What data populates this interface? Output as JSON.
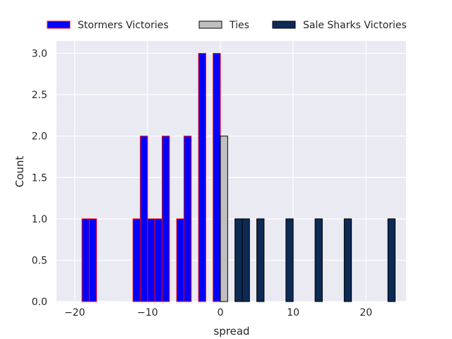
{
  "chart_data": {
    "type": "bar",
    "xlabel": "spread",
    "ylabel": "Count",
    "xlim": [
      -22.5,
      25.5
    ],
    "ylim": [
      0,
      3.15
    ],
    "xticks": [
      -20,
      -10,
      0,
      10,
      20
    ],
    "xtick_labels": [
      "−20",
      "−10",
      "0",
      "10",
      "20"
    ],
    "yticks": [
      0,
      0.5,
      1.0,
      1.5,
      2.0,
      2.5,
      3.0
    ],
    "ytick_labels": [
      "0.0",
      "0.5",
      "1.0",
      "1.5",
      "2.0",
      "2.5",
      "3.0"
    ],
    "bin_width": 1,
    "grid": true,
    "legend_position": "top, outside plot",
    "series": [
      {
        "name": "Stormers Victories",
        "color": "#0000ff",
        "edge_color": "#ff0000",
        "bins": [
          {
            "x": -19,
            "count": 1
          },
          {
            "x": -18,
            "count": 1
          },
          {
            "x": -12,
            "count": 1
          },
          {
            "x": -11,
            "count": 2
          },
          {
            "x": -10,
            "count": 1
          },
          {
            "x": -9,
            "count": 1
          },
          {
            "x": -8,
            "count": 2
          },
          {
            "x": -6,
            "count": 1
          },
          {
            "x": -5,
            "count": 2
          },
          {
            "x": -3,
            "count": 3
          },
          {
            "x": -1,
            "count": 3
          }
        ]
      },
      {
        "name": "Ties",
        "color": "#c0c0c0",
        "edge_color": "#000000",
        "bins": [
          {
            "x": 0,
            "count": 2
          }
        ]
      },
      {
        "name": "Sale Sharks Victories",
        "color": "#0c2a54",
        "edge_color": "#000000",
        "bins": [
          {
            "x": 2,
            "count": 1
          },
          {
            "x": 3,
            "count": 1
          },
          {
            "x": 5,
            "count": 1
          },
          {
            "x": 9,
            "count": 1
          },
          {
            "x": 13,
            "count": 1
          },
          {
            "x": 17,
            "count": 1
          },
          {
            "x": 23,
            "count": 1
          }
        ]
      }
    ]
  }
}
